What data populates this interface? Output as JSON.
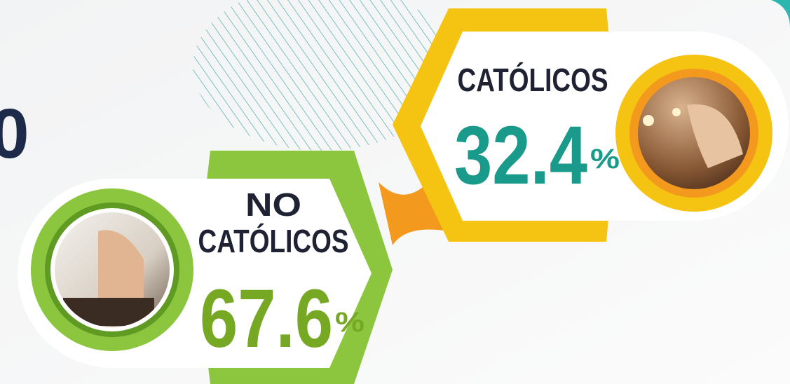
{
  "cropped_text": "0",
  "items": [
    {
      "label_lines": [
        "CATÓLICOS"
      ],
      "value": 32.4,
      "unit": "%"
    },
    {
      "label_lines": [
        "NO",
        "CATÓLICOS"
      ],
      "value": 67.6,
      "unit": "%"
    }
  ]
}
